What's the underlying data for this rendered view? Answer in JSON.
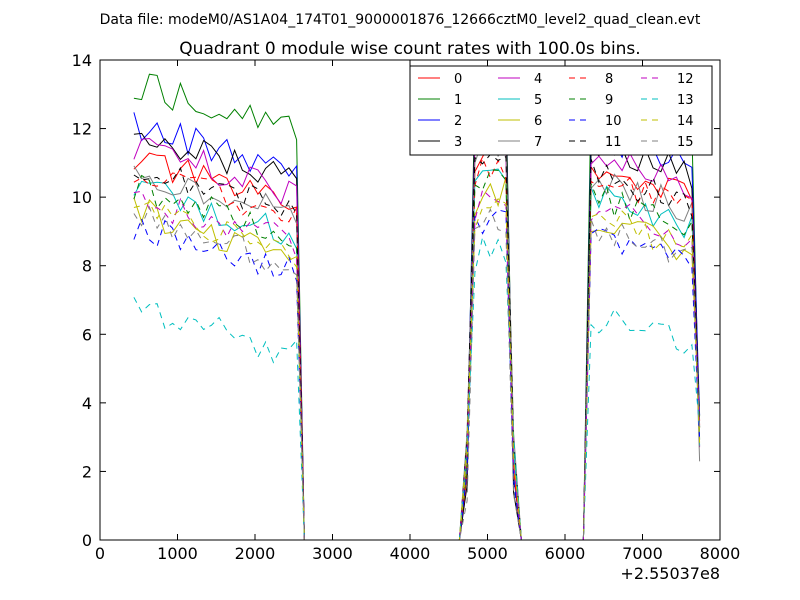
{
  "chart_data": {
    "type": "line",
    "suptitle": "Data file: modeM0/AS1A04_174T01_9000001876_12666cztM0_level2_quad_clean.evt",
    "title": "Quadrant 0 module wise count rates with 100.0s bins.",
    "xlabel": "",
    "ylabel": "",
    "x_offset_label": "+2.55037e8",
    "xlim": [
      0,
      8000
    ],
    "ylim": [
      0,
      14
    ],
    "xticks": [
      0,
      1000,
      2000,
      3000,
      4000,
      5000,
      6000,
      7000,
      8000
    ],
    "yticks": [
      0,
      2,
      4,
      6,
      8,
      10,
      12,
      14
    ],
    "legend_position": "top-right",
    "legend_columns": 4,
    "segments": [
      {
        "start": 437,
        "step": 100,
        "count": 22
      },
      {
        "start": 4737,
        "step": 100,
        "count": 7
      },
      {
        "start": 6337,
        "step": 100,
        "count": 15
      }
    ],
    "series": [
      {
        "name": "0",
        "color": "#ff0000",
        "dash": "solid",
        "level": 10.3,
        "peak": 11.4
      },
      {
        "name": "1",
        "color": "#008000",
        "dash": "solid",
        "level": 12.5,
        "peak": 13.0
      },
      {
        "name": "2",
        "color": "#0000ff",
        "dash": "solid",
        "level": 11.3,
        "peak": 12.3
      },
      {
        "name": "3",
        "color": "#000000",
        "dash": "solid",
        "level": 11.0,
        "peak": 12.4
      },
      {
        "name": "4",
        "color": "#bf00bf",
        "dash": "solid",
        "level": 10.7,
        "peak": 11.6
      },
      {
        "name": "5",
        "color": "#00bfbf",
        "dash": "solid",
        "level": 9.5,
        "peak": 10.4
      },
      {
        "name": "6",
        "color": "#bfbf00",
        "dash": "solid",
        "level": 8.8,
        "peak": 10.2
      },
      {
        "name": "7",
        "color": "#808080",
        "dash": "solid",
        "level": 10.0,
        "peak": 11.5
      },
      {
        "name": "8",
        "color": "#ff0000",
        "dash": "dashed",
        "level": 10.0,
        "peak": 10.8
      },
      {
        "name": "9",
        "color": "#008000",
        "dash": "dashed",
        "level": 9.5,
        "peak": 10.6
      },
      {
        "name": "10",
        "color": "#0000ff",
        "dash": "dashed",
        "level": 8.4,
        "peak": 9.3
      },
      {
        "name": "11",
        "color": "#000000",
        "dash": "dashed",
        "level": 10.2,
        "peak": 11.1
      },
      {
        "name": "12",
        "color": "#bf00bf",
        "dash": "dashed",
        "level": 9.2,
        "peak": 10.0
      },
      {
        "name": "13",
        "color": "#00bfbf",
        "dash": "dashed",
        "level": 6.0,
        "peak": 8.4
      },
      {
        "name": "14",
        "color": "#bfbf00",
        "dash": "dashed",
        "level": 8.9,
        "peak": 9.7
      },
      {
        "name": "15",
        "color": "#808080",
        "dash": "dashed",
        "level": 8.6,
        "peak": 9.2
      }
    ]
  }
}
